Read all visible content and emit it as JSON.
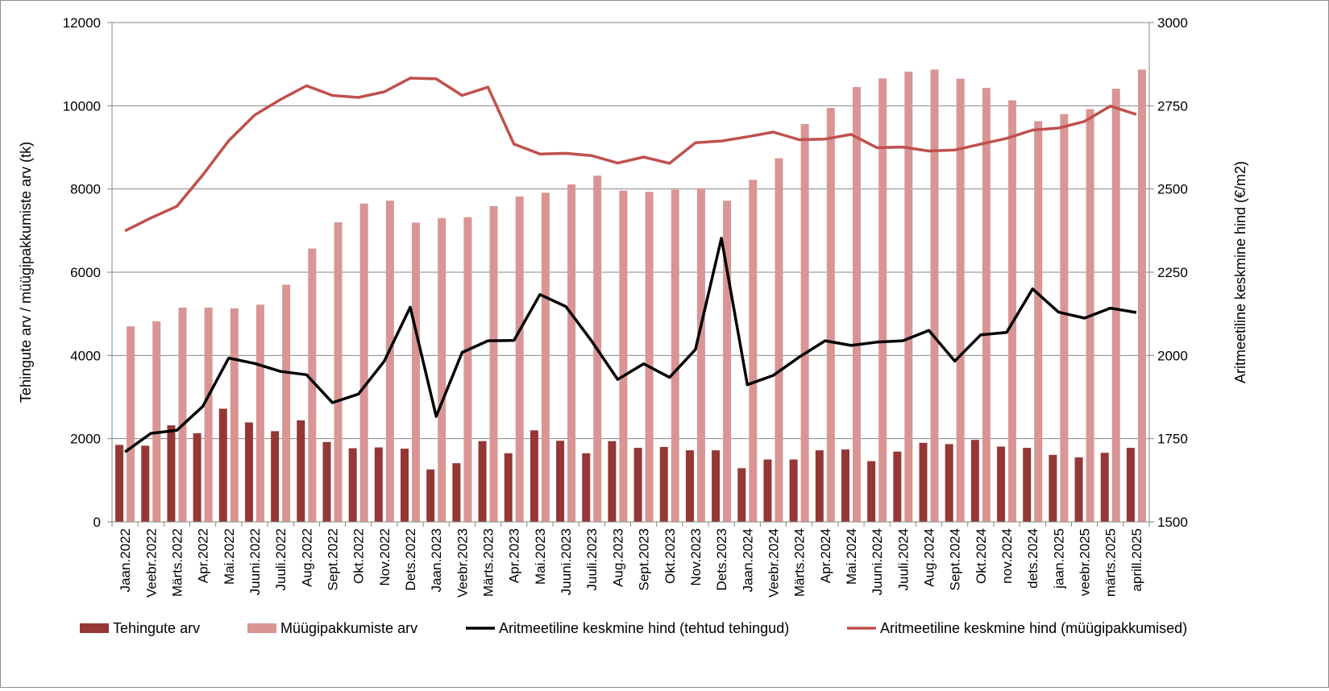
{
  "chart_data": {
    "type": "bar",
    "categories": [
      "Jaan.2022",
      "Veebr.2022",
      "Märts.2022",
      "Apr.2022",
      "Mai.2022",
      "Juuni.2022",
      "Juuli.2022",
      "Aug.2022",
      "Sept.2022",
      "Okt.2022",
      "Nov.2022",
      "Dets.2022",
      "Jaan.2023",
      "Veebr.2023",
      "Märts.2023",
      "Apr.2023",
      "Mai.2023",
      "Juuni.2023",
      "Juuli.2023",
      "Aug.2023",
      "Sept.2023",
      "Okt.2023",
      "Nov.2023",
      "Dets.2023",
      "Jaan.2024",
      "Veebr.2024",
      "Märts.2024",
      "Apr.2024",
      "Mai.2024",
      "Juuni.2024",
      "Juuli.2024",
      "Aug.2024",
      "Sept.2024",
      "Okt.2024",
      "nov.2024",
      "dets.2024",
      "jaan.2025",
      "veebr.2025",
      "märts.2025",
      "aprill.2025"
    ],
    "y_left": {
      "label": "Tehingute arv / müügipakkumiste arv (tk)",
      "range": [
        0,
        12000
      ],
      "ticks": [
        "0",
        "2000",
        "4000",
        "6000",
        "8000",
        "10000",
        "12000"
      ]
    },
    "y_right": {
      "label": "Aritmeetiline keskmine hind (€/m2)",
      "range": [
        1500,
        3000
      ],
      "ticks": [
        "1500",
        "1750",
        "2000",
        "2250",
        "2500",
        "2750",
        "3000"
      ]
    },
    "grid": true,
    "legend_position": "bottom",
    "series": [
      {
        "name": "Tehingute arv",
        "type": "bar",
        "axis": "left",
        "color": "#953735",
        "values": [
          1850,
          1830,
          2320,
          2130,
          2720,
          2390,
          2180,
          2440,
          1920,
          1770,
          1790,
          1760,
          1260,
          1410,
          1940,
          1650,
          2200,
          1950,
          1650,
          1940,
          1780,
          1800,
          1720,
          1720,
          1290,
          1500,
          1500,
          1720,
          1740,
          1460,
          1690,
          1900,
          1870,
          1970,
          1810,
          1780,
          1610,
          1550,
          1660,
          1780
        ]
      },
      {
        "name": "Müügipakkumiste arv",
        "type": "bar",
        "axis": "left",
        "color": "#d99594",
        "values": [
          4700,
          4820,
          5150,
          5150,
          5130,
          5220,
          5700,
          6570,
          7200,
          7650,
          7720,
          7190,
          7300,
          7320,
          7590,
          7820,
          7910,
          8110,
          8320,
          7960,
          7930,
          7980,
          8020,
          7720,
          8220,
          8740,
          9560,
          9950,
          10450,
          10660,
          10820,
          10870,
          10650,
          10430,
          10130,
          9630,
          9800,
          9920,
          10410,
          10870
        ]
      },
      {
        "name": "Aritmeetiline keskmine hind (tehtud tehingud)",
        "type": "line",
        "axis": "right",
        "color": "#000000",
        "values": [
          1710,
          1766,
          1775,
          1847,
          1992,
          1976,
          1952,
          1942,
          1858,
          1884,
          1983,
          2145,
          1817,
          2009,
          2044,
          2045,
          2183,
          2147,
          2043,
          1928,
          1975,
          1934,
          2018,
          2352,
          1912,
          1940,
          1995,
          2044,
          2030,
          2040,
          2044,
          2075,
          1983,
          2062,
          2069,
          2200,
          2130,
          2112,
          2142,
          2129
        ]
      },
      {
        "name": "Aritmeetiline keskmine hind (müügipakkumised)",
        "type": "line",
        "axis": "right",
        "color": "#c0504d",
        "values": [
          2374,
          2413,
          2448,
          2542,
          2645,
          2722,
          2769,
          2810,
          2781,
          2775,
          2792,
          2833,
          2831,
          2781,
          2806,
          2635,
          2605,
          2607,
          2600,
          2578,
          2596,
          2577,
          2639,
          2644,
          2657,
          2671,
          2648,
          2650,
          2664,
          2624,
          2626,
          2614,
          2617,
          2635,
          2652,
          2677,
          2683,
          2703,
          2749,
          2724
        ]
      }
    ]
  }
}
